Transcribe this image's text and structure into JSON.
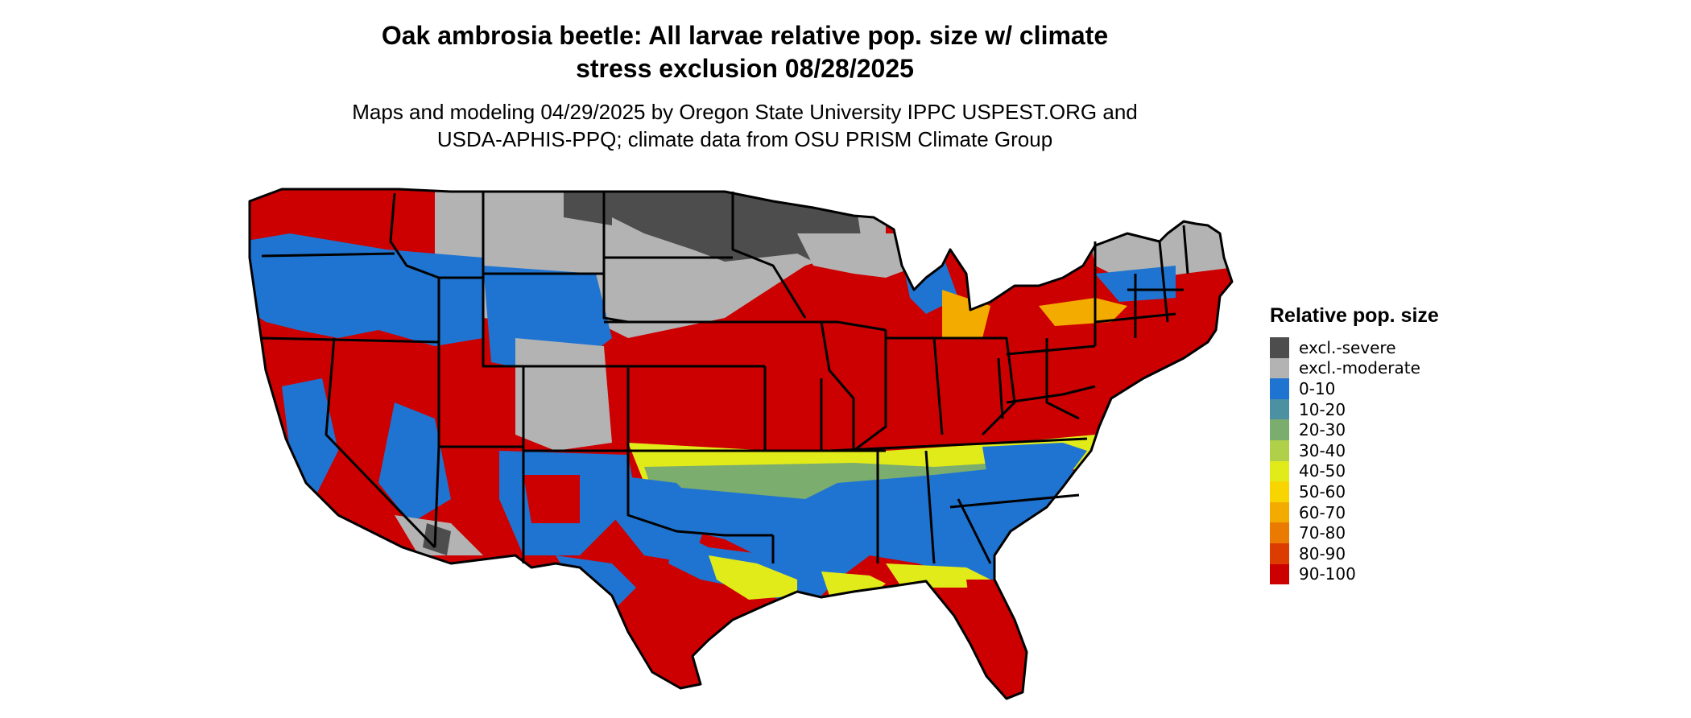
{
  "title": "Oak ambrosia beetle: All larvae relative pop. size w/ climate\nstress exclusion 08/28/2025",
  "subtitle": "Maps and modeling 04/29/2025 by Oregon State University IPPC USPEST.ORG and\nUSDA-APHIS-PPQ; climate data from OSU PRISM Climate Group",
  "legend": {
    "title": "Relative pop. size",
    "items": [
      {
        "label": "excl.-severe",
        "color": "#4d4d4d"
      },
      {
        "label": "excl.-moderate",
        "color": "#b3b3b3"
      },
      {
        "label": "0-10",
        "color": "#1f74d1"
      },
      {
        "label": "10-20",
        "color": "#4b91a2"
      },
      {
        "label": "20-30",
        "color": "#7bad6e"
      },
      {
        "label": "30-40",
        "color": "#b0d04a"
      },
      {
        "label": "40-50",
        "color": "#e2eb1a"
      },
      {
        "label": "50-60",
        "color": "#f8d400"
      },
      {
        "label": "60-70",
        "color": "#f3ab00"
      },
      {
        "label": "70-80",
        "color": "#ea7b00"
      },
      {
        "label": "80-90",
        "color": "#dc3c00"
      },
      {
        "label": "90-100",
        "color": "#cc0000"
      }
    ]
  }
}
